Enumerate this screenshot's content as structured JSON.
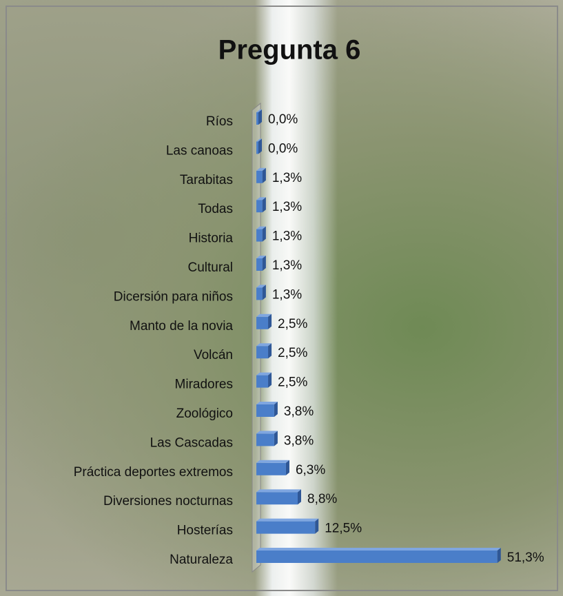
{
  "chart_data": {
    "type": "hbar",
    "title": "Pregunta 6",
    "categories": [
      "Ríos",
      "Las canoas",
      "Tarabitas",
      "Todas",
      "Historia",
      "Cultural",
      "Dicersión para niños",
      "Manto de la novia",
      "Volcán",
      "Miradores",
      "Zoológico",
      "Las Cascadas",
      "Práctica deportes extremos",
      "Diversiones nocturnas",
      "Hosterías",
      "Naturaleza"
    ],
    "values": [
      0,
      0,
      1.3,
      1.3,
      1.3,
      1.3,
      1.3,
      2.5,
      2.5,
      2.5,
      3.8,
      3.8,
      6.3,
      8.8,
      12.5,
      51.3
    ],
    "value_labels": [
      "0,0%",
      "0,0%",
      "1,3%",
      "1,3%",
      "1,3%",
      "1,3%",
      "1,3%",
      "2,5%",
      "2,5%",
      "2,5%",
      "3,8%",
      "3,8%",
      "6,3%",
      "8,8%",
      "12,5%",
      "51,3%"
    ],
    "color": "#4a7ec9",
    "xlim": [
      0,
      55
    ]
  }
}
